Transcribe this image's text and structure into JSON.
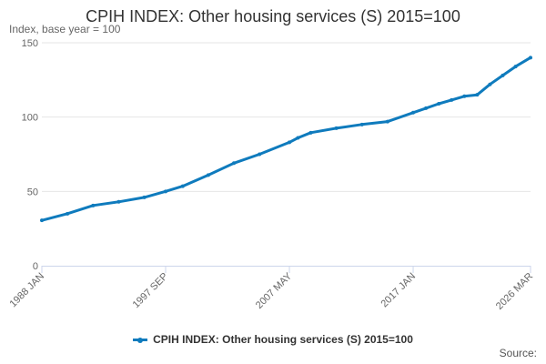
{
  "chart_data": {
    "type": "line",
    "title": "CPIH INDEX: Other housing services (S) 2015=100",
    "ylabel": "Index, base year = 100",
    "xlabel": "",
    "ylim": [
      0,
      150
    ],
    "yticks": [
      0,
      50,
      100,
      150
    ],
    "xticks": [
      "1988 JAN",
      "1997 SEP",
      "2007 MAY",
      "2017 JAN",
      "2026 MAR"
    ],
    "grid": true,
    "legend_position": "bottom",
    "color": "#0f7bbd",
    "series": [
      {
        "name": "CPIH INDEX: Other housing services (S) 2015=100",
        "x": [
          "1988 JAN",
          "1990 JAN",
          "1992 JAN",
          "1994 JAN",
          "1996 JAN",
          "1997 SEP",
          "1999 JAN",
          "2001 JAN",
          "2003 JAN",
          "2005 JAN",
          "2007 MAY",
          "2008 JAN",
          "2009 JAN",
          "2011 JAN",
          "2013 JAN",
          "2015 JAN",
          "2017 JAN",
          "2018 JAN",
          "2019 JAN",
          "2020 JAN",
          "2021 JAN",
          "2022 JAN",
          "2023 JAN",
          "2024 JAN",
          "2025 JAN",
          "2026 MAR"
        ],
        "values": [
          30.5,
          35,
          40.5,
          43,
          46,
          50,
          53.5,
          61,
          69,
          75,
          83,
          86,
          89.5,
          92.5,
          95,
          97,
          103,
          106,
          109,
          111.5,
          114,
          115,
          122,
          128,
          134,
          140
        ]
      }
    ]
  },
  "source": {
    "label": "Source:"
  }
}
